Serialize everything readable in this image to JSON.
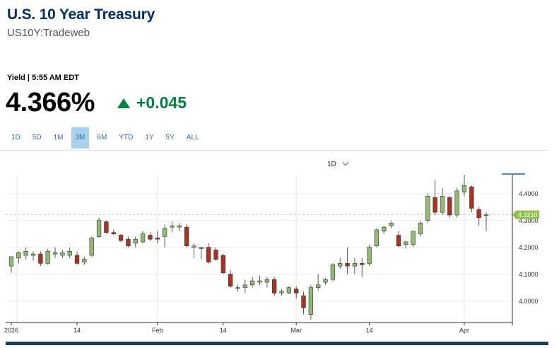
{
  "header": {
    "title": "U.S. 10 Year Treasury",
    "subtitle": "US10Y:Tradeweb"
  },
  "quote": {
    "label": "Yield | 5:55 AM EDT",
    "value": "4.366%",
    "change": "+0.045",
    "direction": "up",
    "change_color": "#00843D"
  },
  "ranges": {
    "items": [
      "1D",
      "5D",
      "1M",
      "3M",
      "6M",
      "YTD",
      "1Y",
      "5Y",
      "ALL"
    ],
    "active": "3M"
  },
  "interval": {
    "value": "1D"
  },
  "chart_data": {
    "type": "candlestick",
    "x_ticks": [
      "2026",
      "14",
      "Feb",
      "14",
      "Mar",
      "14",
      "Apr"
    ],
    "y_ticks": [
      "4.0000",
      "4.1000",
      "4.2000",
      "4.3000",
      "4.4000"
    ],
    "ylim": [
      3.92,
      4.47
    ],
    "grid": true,
    "current_value": 4.321,
    "current_label": "4.3210",
    "current_label_color": "#8BC34A",
    "up_color": "#8FBC6F",
    "down_color": "#B03020",
    "candles": [
      {
        "d": "Jan 2",
        "o": 4.13,
        "h": 4.165,
        "l": 4.105,
        "c": 4.165
      },
      {
        "d": "Jan 5",
        "o": 4.16,
        "h": 4.185,
        "l": 4.14,
        "c": 4.18
      },
      {
        "d": "Jan 6",
        "o": 4.17,
        "h": 4.2,
        "l": 4.155,
        "c": 4.185
      },
      {
        "d": "Jan 7",
        "o": 4.17,
        "h": 4.185,
        "l": 4.15,
        "c": 4.175
      },
      {
        "d": "Jan 8",
        "o": 4.175,
        "h": 4.185,
        "l": 4.13,
        "c": 4.14
      },
      {
        "d": "Jan 9",
        "o": 4.14,
        "h": 4.195,
        "l": 4.135,
        "c": 4.185
      },
      {
        "d": "Jan 12",
        "o": 4.175,
        "h": 4.2,
        "l": 4.16,
        "c": 4.18
      },
      {
        "d": "Jan 13",
        "o": 4.17,
        "h": 4.19,
        "l": 4.16,
        "c": 4.18
      },
      {
        "d": "Jan 14",
        "o": 4.17,
        "h": 4.2,
        "l": 4.16,
        "c": 4.185
      },
      {
        "d": "Jan 15",
        "o": 4.17,
        "h": 4.185,
        "l": 4.135,
        "c": 4.14
      },
      {
        "d": "Jan 16",
        "o": 4.145,
        "h": 4.165,
        "l": 4.135,
        "c": 4.155
      },
      {
        "d": "Jan 20",
        "o": 4.17,
        "h": 4.24,
        "l": 4.165,
        "c": 4.235
      },
      {
        "d": "Jan 21",
        "o": 4.24,
        "h": 4.31,
        "l": 4.235,
        "c": 4.3
      },
      {
        "d": "Jan 22",
        "o": 4.295,
        "h": 4.3,
        "l": 4.25,
        "c": 4.255
      },
      {
        "d": "Jan 23",
        "o": 4.255,
        "h": 4.265,
        "l": 4.245,
        "c": 4.25
      },
      {
        "d": "Jan 26",
        "o": 4.245,
        "h": 4.25,
        "l": 4.22,
        "c": 4.225
      },
      {
        "d": "Jan 27",
        "o": 4.23,
        "h": 4.24,
        "l": 4.2,
        "c": 4.205
      },
      {
        "d": "Jan 28",
        "o": 4.215,
        "h": 4.24,
        "l": 4.2,
        "c": 4.23
      },
      {
        "d": "Jan 29",
        "o": 4.22,
        "h": 4.26,
        "l": 4.215,
        "c": 4.25
      },
      {
        "d": "Jan 30",
        "o": 4.245,
        "h": 4.255,
        "l": 4.225,
        "c": 4.23
      },
      {
        "d": "Feb 2",
        "o": 4.235,
        "h": 4.26,
        "l": 4.215,
        "c": 4.23
      },
      {
        "d": "Feb 3",
        "o": 4.24,
        "h": 4.285,
        "l": 4.2,
        "c": 4.27
      },
      {
        "d": "Feb 4",
        "o": 4.275,
        "h": 4.295,
        "l": 4.255,
        "c": 4.28
      },
      {
        "d": "Feb 5",
        "o": 4.275,
        "h": 4.29,
        "l": 4.26,
        "c": 4.28
      },
      {
        "d": "Feb 6",
        "o": 4.275,
        "h": 4.285,
        "l": 4.2,
        "c": 4.205
      },
      {
        "d": "Feb 9",
        "o": 4.2,
        "h": 4.215,
        "l": 4.16,
        "c": 4.205
      },
      {
        "d": "Feb 10",
        "o": 4.195,
        "h": 4.2,
        "l": 4.155,
        "c": 4.2
      },
      {
        "d": "Feb 11",
        "o": 4.2,
        "h": 4.215,
        "l": 4.14,
        "c": 4.145
      },
      {
        "d": "Feb 12",
        "o": 4.19,
        "h": 4.2,
        "l": 4.15,
        "c": 4.155
      },
      {
        "d": "Feb 13",
        "o": 4.17,
        "h": 4.175,
        "l": 4.1,
        "c": 4.105
      },
      {
        "d": "Feb 17",
        "o": 4.1,
        "h": 4.115,
        "l": 4.05,
        "c": 4.055
      },
      {
        "d": "Feb 18",
        "o": 4.05,
        "h": 4.06,
        "l": 4.035,
        "c": 4.05
      },
      {
        "d": "Feb 19",
        "o": 4.05,
        "h": 4.08,
        "l": 4.03,
        "c": 4.06
      },
      {
        "d": "Feb 20",
        "o": 4.06,
        "h": 4.09,
        "l": 4.05,
        "c": 4.075
      },
      {
        "d": "Feb 23",
        "o": 4.07,
        "h": 4.095,
        "l": 4.06,
        "c": 4.075
      },
      {
        "d": "Feb 24",
        "o": 4.07,
        "h": 4.09,
        "l": 4.05,
        "c": 4.08
      },
      {
        "d": "Feb 25",
        "o": 4.08,
        "h": 4.09,
        "l": 4.02,
        "c": 4.03
      },
      {
        "d": "Feb 26",
        "o": 4.03,
        "h": 4.045,
        "l": 4.02,
        "c": 4.035
      },
      {
        "d": "Feb 27",
        "o": 4.03,
        "h": 4.055,
        "l": 4.025,
        "c": 4.05
      },
      {
        "d": "Mar 2",
        "o": 4.045,
        "h": 4.055,
        "l": 4.01,
        "c": 4.03
      },
      {
        "d": "Mar 3",
        "o": 4.02,
        "h": 4.035,
        "l": 3.95,
        "c": 3.975
      },
      {
        "d": "Mar 4",
        "o": 3.95,
        "h": 4.06,
        "l": 3.93,
        "c": 4.05
      },
      {
        "d": "Mar 5",
        "o": 4.05,
        "h": 4.1,
        "l": 4.04,
        "c": 4.06
      },
      {
        "d": "Mar 6",
        "o": 4.07,
        "h": 4.085,
        "l": 4.06,
        "c": 4.08
      },
      {
        "d": "Mar 9",
        "o": 4.08,
        "h": 4.14,
        "l": 4.075,
        "c": 4.135
      },
      {
        "d": "Mar 10",
        "o": 4.13,
        "h": 4.16,
        "l": 4.12,
        "c": 4.14
      },
      {
        "d": "Mar 11",
        "o": 4.14,
        "h": 4.2,
        "l": 4.1,
        "c": 4.13
      },
      {
        "d": "Mar 12",
        "o": 4.13,
        "h": 4.16,
        "l": 4.1,
        "c": 4.14
      },
      {
        "d": "Mar 13",
        "o": 4.14,
        "h": 4.16,
        "l": 4.09,
        "c": 4.135
      },
      {
        "d": "Mar 16",
        "o": 4.14,
        "h": 4.21,
        "l": 4.13,
        "c": 4.2
      },
      {
        "d": "Mar 17",
        "o": 4.205,
        "h": 4.27,
        "l": 4.2,
        "c": 4.265
      },
      {
        "d": "Mar 18",
        "o": 4.26,
        "h": 4.28,
        "l": 4.25,
        "c": 4.275
      },
      {
        "d": "Mar 19",
        "o": 4.28,
        "h": 4.3,
        "l": 4.27,
        "c": 4.29
      },
      {
        "d": "Mar 20",
        "o": 4.245,
        "h": 4.26,
        "l": 4.2,
        "c": 4.205
      },
      {
        "d": "Mar 23",
        "o": 4.21,
        "h": 4.225,
        "l": 4.195,
        "c": 4.22
      },
      {
        "d": "Mar 24",
        "o": 4.21,
        "h": 4.26,
        "l": 4.2,
        "c": 4.26
      },
      {
        "d": "Mar 25",
        "o": 4.25,
        "h": 4.3,
        "l": 4.24,
        "c": 4.29
      },
      {
        "d": "Mar 26",
        "o": 4.3,
        "h": 4.4,
        "l": 4.29,
        "c": 4.39
      },
      {
        "d": "Mar 27",
        "o": 4.385,
        "h": 4.45,
        "l": 4.32,
        "c": 4.33
      },
      {
        "d": "Mar 30",
        "o": 4.33,
        "h": 4.42,
        "l": 4.32,
        "c": 4.39
      },
      {
        "d": "Mar 31",
        "o": 4.385,
        "h": 4.39,
        "l": 4.31,
        "c": 4.32
      },
      {
        "d": "Apr 1",
        "o": 4.32,
        "h": 4.42,
        "l": 4.31,
        "c": 4.41
      },
      {
        "d": "Apr 2",
        "o": 4.405,
        "h": 4.47,
        "l": 4.39,
        "c": 4.43
      },
      {
        "d": "Apr 3",
        "o": 4.425,
        "h": 4.43,
        "l": 4.33,
        "c": 4.345
      },
      {
        "d": "Apr 6",
        "o": 4.34,
        "h": 4.35,
        "l": 4.28,
        "c": 4.31
      },
      {
        "d": "Apr 7",
        "o": 4.32,
        "h": 4.33,
        "l": 4.26,
        "c": 4.321
      }
    ]
  }
}
